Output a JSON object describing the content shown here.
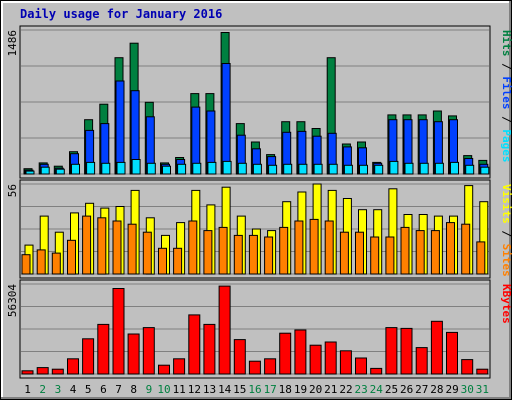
{
  "title": "Daily usage for January 2016",
  "colors": {
    "hits": "#008040",
    "files": "#0040ff",
    "pages": "#00e0ff",
    "visits": "#ffff00",
    "sites": "#ff8000",
    "kbytes": "#ff0000",
    "title": "#0000b3",
    "weekend_label": "#008040"
  },
  "chart_data": [
    {
      "type": "bar",
      "panel": "hits-files-pages",
      "ymax_label": "1486",
      "ymax": 1486,
      "right_labels": [
        "Pages",
        "Files",
        "Hits"
      ],
      "categories": [
        "1",
        "2",
        "3",
        "4",
        "5",
        "6",
        "7",
        "8",
        "9",
        "10",
        "11",
        "12",
        "13",
        "14",
        "15",
        "16",
        "17",
        "18",
        "19",
        "20",
        "21",
        "22",
        "23",
        "24",
        "25",
        "26",
        "27",
        "28",
        "29",
        "30",
        "31"
      ],
      "series": [
        {
          "name": "Hits",
          "values": [
            55,
            115,
            80,
            230,
            560,
            720,
            1200,
            1350,
            740,
            115,
            170,
            830,
            830,
            1460,
            520,
            330,
            200,
            540,
            540,
            470,
            1200,
            310,
            330,
            120,
            610,
            610,
            610,
            650,
            600,
            190,
            140
          ]
        },
        {
          "name": "Files",
          "values": [
            40,
            100,
            60,
            210,
            450,
            520,
            960,
            860,
            590,
            100,
            150,
            690,
            650,
            1140,
            400,
            260,
            180,
            430,
            440,
            390,
            420,
            280,
            270,
            110,
            560,
            560,
            560,
            540,
            560,
            160,
            100
          ]
        },
        {
          "name": "Pages",
          "values": [
            30,
            70,
            50,
            100,
            120,
            110,
            120,
            150,
            110,
            80,
            100,
            110,
            120,
            130,
            110,
            100,
            90,
            100,
            100,
            100,
            100,
            90,
            90,
            90,
            130,
            110,
            110,
            110,
            120,
            90,
            70
          ]
        }
      ]
    },
    {
      "type": "bar",
      "panel": "visits-sites",
      "ymax_label": "56",
      "ymax": 56,
      "right_labels": [
        "Sites",
        "Visits"
      ],
      "categories": [
        "1",
        "2",
        "3",
        "4",
        "5",
        "6",
        "7",
        "8",
        "9",
        "10",
        "11",
        "12",
        "13",
        "14",
        "15",
        "16",
        "17",
        "18",
        "19",
        "20",
        "21",
        "22",
        "23",
        "24",
        "25",
        "26",
        "27",
        "28",
        "29",
        "30",
        "31"
      ],
      "series": [
        {
          "name": "Visits",
          "values": [
            18,
            36,
            26,
            38,
            44,
            41,
            42,
            52,
            35,
            24,
            32,
            52,
            43,
            54,
            36,
            28,
            27,
            45,
            51,
            56,
            52,
            47,
            40,
            40,
            53,
            37,
            37,
            36,
            36,
            55,
            45
          ]
        },
        {
          "name": "Sites",
          "values": [
            12,
            15,
            13,
            21,
            36,
            35,
            33,
            31,
            26,
            16,
            16,
            33,
            27,
            29,
            24,
            24,
            23,
            29,
            33,
            34,
            33,
            26,
            26,
            23,
            23,
            29,
            27,
            27,
            32,
            31,
            20
          ]
        }
      ]
    },
    {
      "type": "bar",
      "panel": "kbytes",
      "ymax_label": "56304",
      "ymax": 56304,
      "right_labels": [
        "KBytes"
      ],
      "categories": [
        "1",
        "2",
        "3",
        "4",
        "5",
        "6",
        "7",
        "8",
        "9",
        "10",
        "11",
        "12",
        "13",
        "14",
        "15",
        "16",
        "17",
        "18",
        "19",
        "20",
        "21",
        "22",
        "23",
        "24",
        "25",
        "26",
        "27",
        "28",
        "29",
        "30",
        "31"
      ],
      "series": [
        {
          "name": "KBytes",
          "values": [
            2000,
            4000,
            3000,
            9500,
            22000,
            31000,
            53500,
            25000,
            29000,
            5500,
            9500,
            37000,
            31000,
            55000,
            21500,
            8000,
            9500,
            25500,
            27500,
            18000,
            20000,
            14500,
            10000,
            3500,
            29000,
            28500,
            16500,
            33000,
            26000,
            9000,
            3000
          ]
        }
      ]
    }
  ],
  "weekend_days": [
    "2",
    "3",
    "9",
    "10",
    "16",
    "17",
    "23",
    "24",
    "30",
    "31"
  ]
}
